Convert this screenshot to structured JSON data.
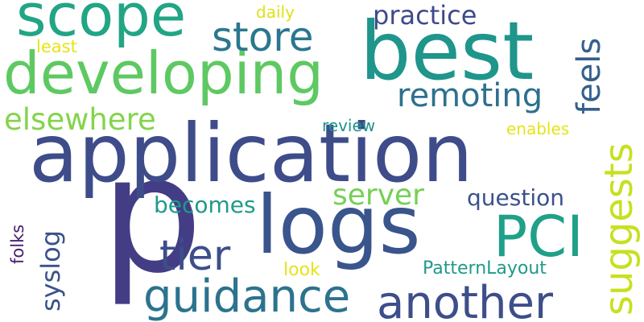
{
  "words": [
    {
      "text": "p",
      "color": "#433d85"
    },
    {
      "text": "application",
      "color": "#3e4c8a"
    },
    {
      "text": "logs",
      "color": "#3a548c"
    },
    {
      "text": "best",
      "color": "#1f958b"
    },
    {
      "text": "developing",
      "color": "#5ec962"
    },
    {
      "text": "scope",
      "color": "#21a585"
    },
    {
      "text": "another",
      "color": "#3d4e8a"
    },
    {
      "text": "guidance",
      "color": "#2c738e"
    },
    {
      "text": "PCI",
      "color": "#1fa088"
    },
    {
      "text": "suggests",
      "color": "#c8e020"
    },
    {
      "text": "store",
      "color": "#2a778e"
    },
    {
      "text": "tier",
      "color": "#3d4e8a"
    },
    {
      "text": "remoting",
      "color": "#2d708e"
    },
    {
      "text": "elsewhere",
      "color": "#84d44b"
    },
    {
      "text": "feels",
      "color": "#355f8d"
    },
    {
      "text": "practice",
      "color": "#3e4a89"
    },
    {
      "text": "server",
      "color": "#75d054"
    },
    {
      "text": "syslog",
      "color": "#3b528b"
    },
    {
      "text": "question",
      "color": "#3b518b"
    },
    {
      "text": "becomes",
      "color": "#1f9a8a"
    },
    {
      "text": "PatternLayout",
      "color": "#1f9a8a"
    },
    {
      "text": "review",
      "color": "#1f948c"
    },
    {
      "text": "enables",
      "color": "#e5e419"
    },
    {
      "text": "look",
      "color": "#e5e419"
    },
    {
      "text": "least",
      "color": "#e5e419"
    },
    {
      "text": "daily",
      "color": "#dde318"
    },
    {
      "text": "folks",
      "color": "#482071"
    }
  ]
}
